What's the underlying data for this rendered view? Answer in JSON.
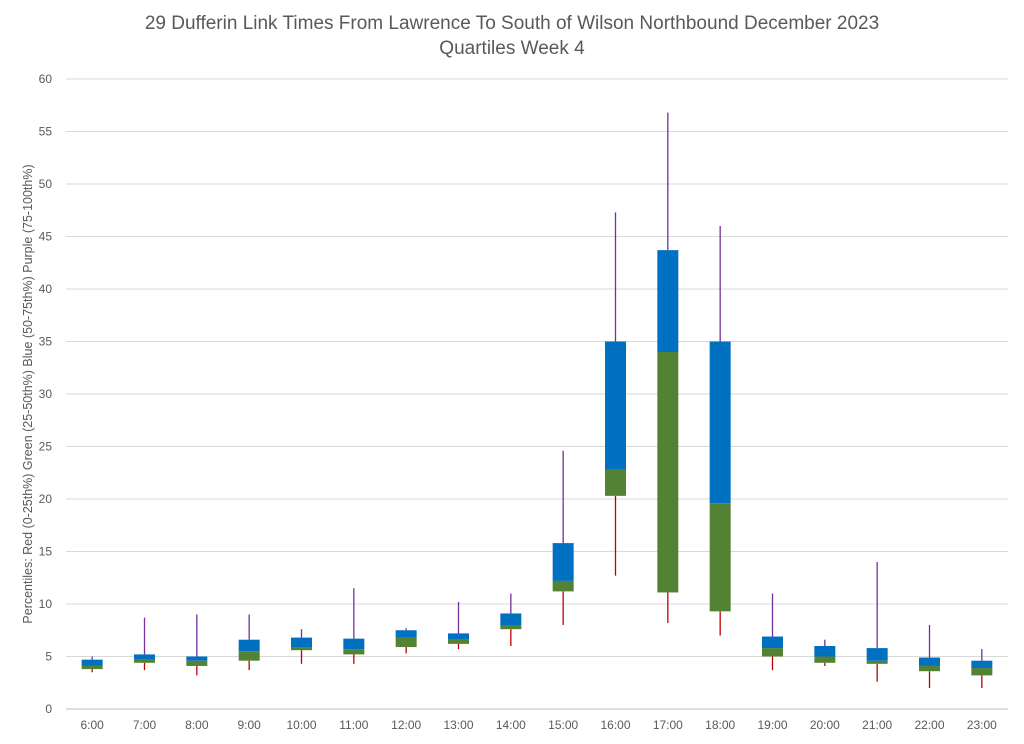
{
  "chart_data": {
    "type": "box",
    "title": "29 Dufferin Link Times From Lawrence To South of Wilson Northbound December 2023",
    "subtitle": "Quartiles Week 4",
    "ylabel": "Percentiles:  Red (0-25th%)  Green (25-50th%)  Blue (50-75th%)  Purple (75-100th%)",
    "xlabel": "",
    "ylim": [
      0,
      60
    ],
    "yticks": [
      0,
      5,
      10,
      15,
      20,
      25,
      30,
      35,
      40,
      45,
      50,
      55,
      60
    ],
    "grid": true,
    "categories": [
      "6:00",
      "7:00",
      "8:00",
      "9:00",
      "10:00",
      "11:00",
      "12:00",
      "13:00",
      "14:00",
      "15:00",
      "16:00",
      "17:00",
      "18:00",
      "19:00",
      "20:00",
      "21:00",
      "22:00",
      "23:00"
    ],
    "min": [
      3.5,
      3.7,
      3.2,
      3.7,
      4.3,
      4.3,
      5.3,
      5.7,
      6.0,
      8.0,
      12.7,
      8.2,
      7.0,
      3.7,
      4.1,
      2.6,
      2.0,
      2.0
    ],
    "q1": [
      3.8,
      4.4,
      4.1,
      4.6,
      5.6,
      5.2,
      5.9,
      6.2,
      7.6,
      11.2,
      20.3,
      11.1,
      9.3,
      5.0,
      4.4,
      4.3,
      3.6,
      3.2
    ],
    "median": [
      4.1,
      4.7,
      4.6,
      5.5,
      5.9,
      5.7,
      6.8,
      6.6,
      8.0,
      12.2,
      22.8,
      34.0,
      19.6,
      5.8,
      5.0,
      4.6,
      4.1,
      3.9
    ],
    "q3": [
      4.7,
      5.2,
      5.0,
      6.6,
      6.8,
      6.7,
      7.5,
      7.2,
      9.1,
      15.8,
      35.0,
      43.7,
      35.0,
      6.9,
      6.0,
      5.8,
      4.9,
      4.6
    ],
    "max": [
      5.0,
      8.7,
      9.0,
      9.0,
      7.6,
      11.5,
      7.7,
      10.2,
      11.0,
      24.6,
      47.3,
      56.8,
      46.0,
      11.0,
      6.6,
      14.0,
      8.0,
      5.7
    ],
    "colors": {
      "q0_25": "#c00000",
      "q25_50": "#548235",
      "q50_75": "#0070c0",
      "q75_100": "#7030a0",
      "grid": "#d9d9d9",
      "text": "#595959"
    }
  }
}
